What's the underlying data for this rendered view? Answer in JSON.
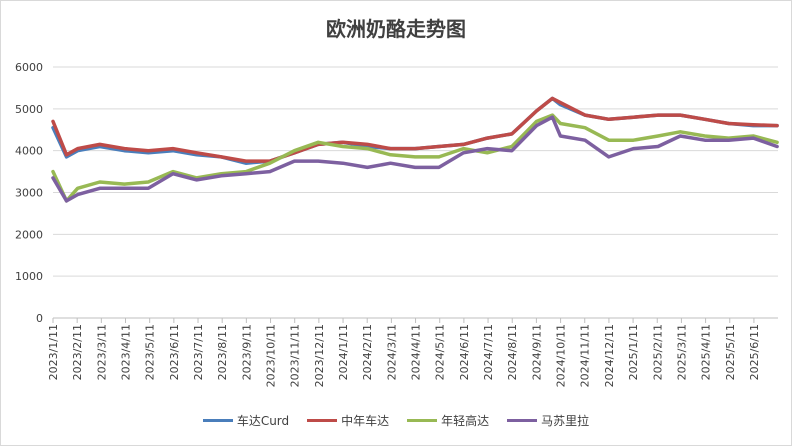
{
  "chart_data": {
    "type": "line",
    "title": "欧洲奶酪走势图",
    "xlabel": "",
    "ylabel": "",
    "ylim": [
      0,
      6000
    ],
    "yticks": [
      0,
      1000,
      2000,
      3000,
      4000,
      5000,
      6000
    ],
    "xticks": [
      "2023/1/11",
      "2023/2/11",
      "2023/3/11",
      "2023/4/11",
      "2023/5/11",
      "2023/6/11",
      "2023/7/11",
      "2023/8/11",
      "2023/9/11",
      "2023/10/11",
      "2023/11/11",
      "2023/12/11",
      "2024/1/11",
      "2024/2/11",
      "2024/3/11",
      "2024/4/11",
      "2024/5/11",
      "2024/6/11",
      "2024/7/11",
      "2024/8/11",
      "2024/9/11",
      "2024/10/11",
      "2024/11/11",
      "2024/12/11",
      "2025/1/11",
      "2025/2/11",
      "2025/3/11",
      "2025/4/11",
      "2025/5/11",
      "2025/6/11"
    ],
    "grid": true,
    "legend": "bottom",
    "x": [
      "2023-01-11",
      "2023-01-28",
      "2023-02-11",
      "2023-03-11",
      "2023-04-11",
      "2023-05-11",
      "2023-06-11",
      "2023-07-11",
      "2023-08-11",
      "2023-09-11",
      "2023-10-11",
      "2023-11-11",
      "2023-12-11",
      "2024-01-11",
      "2024-02-11",
      "2024-03-11",
      "2024-04-11",
      "2024-05-11",
      "2024-06-11",
      "2024-07-11",
      "2024-08-11",
      "2024-09-11",
      "2024-10-01",
      "2024-10-11",
      "2024-11-11",
      "2024-12-11",
      "2025-01-11",
      "2025-02-11",
      "2025-03-11",
      "2025-04-11",
      "2025-05-11",
      "2025-06-11",
      "2025-07-11"
    ],
    "series": [
      {
        "name": "车达Curd",
        "color": "#4a7ebb",
        "values": [
          4550,
          3850,
          4000,
          4100,
          4000,
          3950,
          4000,
          3900,
          3850,
          3700,
          3750,
          3950,
          4150,
          4200,
          4100,
          4050,
          4050,
          4100,
          4150,
          4300,
          4400,
          4950,
          5250,
          5100,
          4850,
          4750,
          4800,
          4850,
          4850,
          4750,
          4650,
          4600,
          4600
        ]
      },
      {
        "name": "中年车达",
        "color": "#be4b48",
        "values": [
          4700,
          3900,
          4050,
          4150,
          4050,
          4000,
          4050,
          3950,
          3850,
          3750,
          3750,
          3950,
          4150,
          4200,
          4150,
          4050,
          4050,
          4100,
          4150,
          4300,
          4400,
          4950,
          5250,
          5150,
          4850,
          4750,
          4800,
          4850,
          4850,
          4750,
          4650,
          4620,
          4600
        ]
      },
      {
        "name": "年轻高达",
        "color": "#98b954",
        "values": [
          3500,
          2800,
          3100,
          3250,
          3200,
          3250,
          3500,
          3350,
          3450,
          3500,
          3700,
          4000,
          4200,
          4100,
          4050,
          3900,
          3850,
          3850,
          4050,
          3950,
          4100,
          4700,
          4850,
          4650,
          4550,
          4250,
          4250,
          4350,
          4450,
          4350,
          4300,
          4350,
          4200
        ]
      },
      {
        "name": "马苏里拉",
        "color": "#7d60a0",
        "values": [
          3350,
          2800,
          2950,
          3100,
          3100,
          3100,
          3450,
          3300,
          3400,
          3450,
          3500,
          3750,
          3750,
          3700,
          3600,
          3700,
          3600,
          3600,
          3950,
          4050,
          4000,
          4600,
          4800,
          4350,
          4250,
          3850,
          4050,
          4100,
          4350,
          4250,
          4250,
          4300,
          4100
        ]
      }
    ]
  }
}
